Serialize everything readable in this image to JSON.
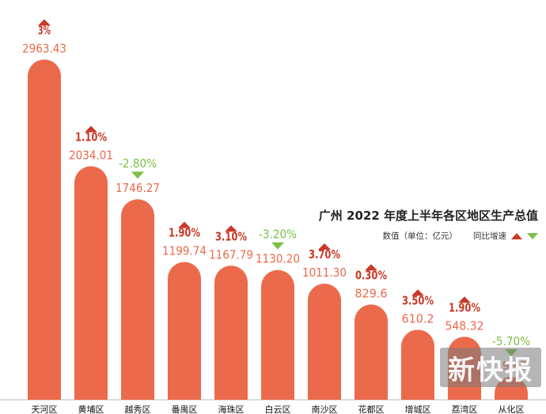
{
  "colors": {
    "bar": "#ec6a4c",
    "value_text": "#ec6a4c",
    "up": "#c73a28",
    "down": "#7cc046",
    "axis_label": "#111111",
    "baseline": "#bbbbbb"
  },
  "legend": {
    "title": "广州 2022 年度上半年各区地区生产总值",
    "unit_label": "数值（单位：亿元）",
    "growth_label": "同比增速"
  },
  "watermark": {
    "text": "新快报"
  },
  "chart_data": {
    "type": "bar",
    "title": "广州 2022 年度上半年各区地区生产总值",
    "categories": [
      "天河区",
      "黄埔区",
      "越秀区",
      "番禺区",
      "海珠区",
      "白云区",
      "南沙区",
      "花都区",
      "增城区",
      "荔湾区",
      "从化区"
    ],
    "series": [
      {
        "name": "数值（单位：亿元）",
        "values": [
          2963.43,
          2034.01,
          1746.27,
          1199.74,
          1167.79,
          1130.2,
          1011.3,
          829.6,
          610.2,
          548.32,
          199.7
        ]
      }
    ],
    "value_labels": [
      "2963.43",
      "2034.01",
      "1746.27",
      "1199.74",
      "1167.79",
      "1130.20",
      "1011.30",
      "829.6",
      "610.2",
      "548.32",
      "199.7"
    ],
    "growth": {
      "name": "同比增速",
      "labels": [
        "3%",
        "1.10%",
        "-2.80%",
        "1.90%",
        "3.10%",
        "-3.20%",
        "3.70%",
        "0.30%",
        "3.50%",
        "1.90%",
        "-5.70%"
      ],
      "direction": [
        "up",
        "up",
        "down",
        "up",
        "up",
        "down",
        "up",
        "up",
        "up",
        "up",
        "down"
      ]
    },
    "ylim": [
      0,
      3000
    ],
    "grid": false,
    "legend_position": "right"
  }
}
